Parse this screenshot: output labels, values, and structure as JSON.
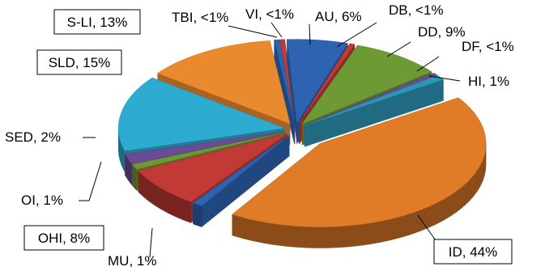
{
  "chart_data": {
    "type": "pie",
    "title": "",
    "style": "3d-exploded",
    "legend": "none",
    "slices": [
      {
        "label": "AU, 6%",
        "name": "AU",
        "value": 6,
        "color": "#2e63b2"
      },
      {
        "label": "DB, <1%",
        "name": "DB",
        "value": 0.5,
        "color": "#c23a36"
      },
      {
        "label": "DD, 9%",
        "name": "DD",
        "value": 9,
        "color": "#6e9a35"
      },
      {
        "label": "DF, <1%",
        "name": "DF",
        "value": 0.5,
        "color": "#6a4b95"
      },
      {
        "label": "HI, 1%",
        "name": "HI",
        "value": 1,
        "color": "#2e95b5"
      },
      {
        "label": "ID, 44%",
        "name": "ID",
        "value": 44,
        "color": "#e07b28"
      },
      {
        "label": "MU, 1%",
        "name": "MU",
        "value": 1,
        "color": "#2e63b2"
      },
      {
        "label": "OHI, 8%",
        "name": "OHI",
        "value": 8,
        "color": "#c23a36"
      },
      {
        "label": "OI, 1%",
        "name": "OI",
        "value": 1,
        "color": "#6e9a35"
      },
      {
        "label": "SED, 2%",
        "name": "SED",
        "value": 2,
        "color": "#6a4b95"
      },
      {
        "label": "SLD, 15%",
        "name": "SLD",
        "value": 15,
        "color": "#2eabd0"
      },
      {
        "label": "S-LI, 13%",
        "name": "S-LI",
        "value": 13,
        "color": "#ea8a2f"
      },
      {
        "label": "TBI, <1%",
        "name": "TBI",
        "value": 0.5,
        "color": "#2e63b2"
      },
      {
        "label": "VI, <1%",
        "name": "VI",
        "value": 0.5,
        "color": "#c23a36"
      }
    ]
  }
}
